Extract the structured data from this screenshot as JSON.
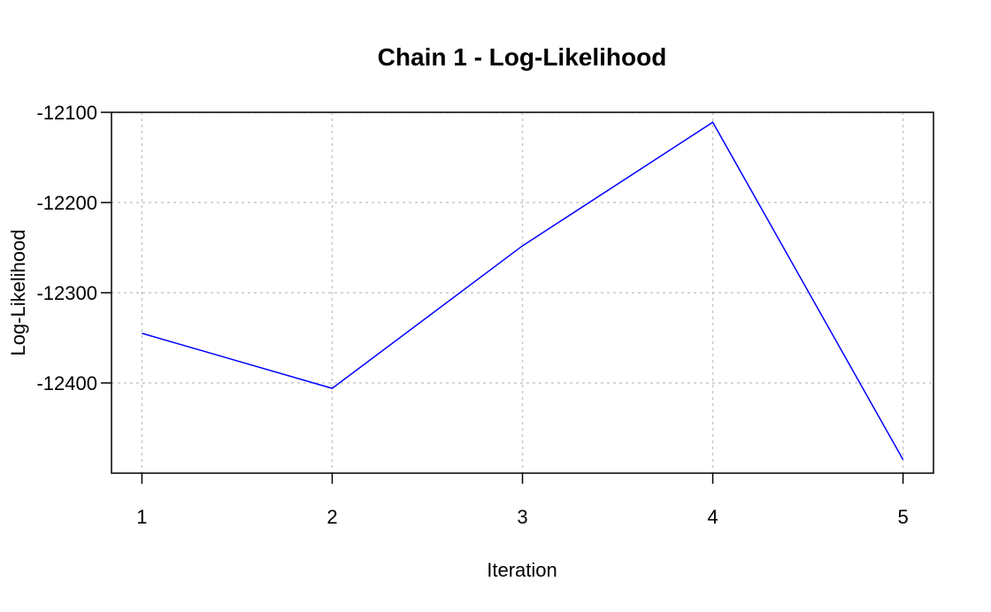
{
  "chart_data": {
    "type": "line",
    "title": "Chain 1 - Log-Likelihood",
    "xlabel": "Iteration",
    "ylabel": "Log-Likelihood",
    "x": [
      1,
      2,
      3,
      4,
      5
    ],
    "series": [
      {
        "values": [
          -12345,
          -12406,
          -12248,
          -12111,
          -12485
        ],
        "color": "#0000ff"
      }
    ],
    "xticks": [
      1,
      2,
      3,
      4,
      5
    ],
    "xtick_labels": [
      "1",
      "2",
      "3",
      "4",
      "5"
    ],
    "yticks": [
      -12100,
      -12200,
      -12300,
      -12400
    ],
    "ytick_labels": [
      "-12100",
      "-12200",
      "-12300",
      "-12400"
    ],
    "xlim": [
      0.84,
      5.16
    ],
    "ylim": [
      -12500,
      -12100
    ],
    "grid": true
  }
}
